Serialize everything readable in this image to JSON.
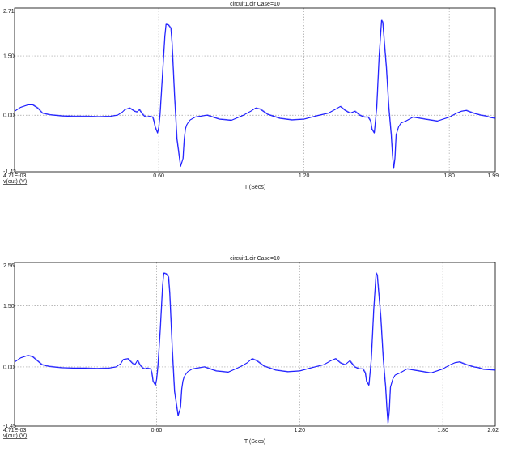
{
  "colors": {
    "trace": "#1a1aff",
    "grid": "#a0a0a0",
    "axis": "#000000"
  },
  "chart_data": [
    {
      "type": "line",
      "title": "circuit1.cir Case=10",
      "xlabel": "T (Secs)",
      "signal_label": "v(out) (V)",
      "xlim": [
        0.00471,
        1.99
      ],
      "ylim": [
        -1.43,
        2.71
      ],
      "x_ticks": [
        {
          "value": 0.00471,
          "label": "4.71E-03"
        },
        {
          "value": 0.6,
          "label": "0.60"
        },
        {
          "value": 1.2,
          "label": "1.20"
        },
        {
          "value": 1.8,
          "label": "1.80"
        },
        {
          "value": 1.99,
          "label": "1.99"
        }
      ],
      "y_ticks": [
        {
          "value": 2.71,
          "label": "2.71"
        },
        {
          "value": 1.5,
          "label": "1.50"
        },
        {
          "value": 0.0,
          "label": "0.00"
        },
        {
          "value": -1.43,
          "label": "-1.43"
        }
      ],
      "grid": true,
      "series": [
        {
          "x": [
            0.005,
            0.03,
            0.06,
            0.08,
            0.1,
            0.12,
            0.15,
            0.2,
            0.25,
            0.3,
            0.35,
            0.4,
            0.43,
            0.45,
            0.46,
            0.48,
            0.5,
            0.51,
            0.52,
            0.53,
            0.54,
            0.55,
            0.56,
            0.575,
            0.58,
            0.585,
            0.595,
            0.6,
            0.605,
            0.615,
            0.625,
            0.63,
            0.64,
            0.65,
            0.655,
            0.665,
            0.675,
            0.69,
            0.7,
            0.705,
            0.71,
            0.715,
            0.72,
            0.73,
            0.75,
            0.8,
            0.85,
            0.9,
            0.95,
            0.98,
            1.0,
            1.02,
            1.05,
            1.1,
            1.15,
            1.2,
            1.25,
            1.3,
            1.33,
            1.35,
            1.37,
            1.39,
            1.41,
            1.43,
            1.45,
            1.465,
            1.475,
            1.48,
            1.49,
            1.5,
            1.51,
            1.52,
            1.525,
            1.54,
            1.55,
            1.56,
            1.565,
            1.57,
            1.575,
            1.58,
            1.59,
            1.6,
            1.62,
            1.65,
            1.7,
            1.75,
            1.8,
            1.83,
            1.85,
            1.87,
            1.9,
            1.93,
            1.95,
            1.97,
            1.99
          ],
          "y": [
            0.1,
            0.2,
            0.26,
            0.26,
            0.18,
            0.05,
            0.01,
            -0.02,
            -0.03,
            -0.03,
            -0.04,
            -0.03,
            0.0,
            0.08,
            0.14,
            0.18,
            0.1,
            0.08,
            0.14,
            0.05,
            -0.02,
            -0.05,
            -0.03,
            -0.05,
            -0.15,
            -0.3,
            -0.45,
            -0.3,
            0.0,
            1.0,
            2.0,
            2.3,
            2.28,
            2.2,
            1.8,
            0.5,
            -0.6,
            -1.3,
            -1.1,
            -0.6,
            -0.35,
            -0.25,
            -0.2,
            -0.12,
            -0.05,
            0.0,
            -0.1,
            -0.13,
            0.0,
            0.1,
            0.18,
            0.15,
            0.02,
            -0.08,
            -0.12,
            -0.1,
            -0.02,
            0.05,
            0.15,
            0.22,
            0.12,
            0.05,
            0.1,
            0.0,
            -0.05,
            -0.05,
            -0.15,
            -0.35,
            -0.45,
            0.2,
            1.5,
            2.4,
            2.35,
            1.2,
            0.2,
            -0.5,
            -1.0,
            -1.35,
            -1.1,
            -0.5,
            -0.3,
            -0.2,
            -0.15,
            -0.05,
            -0.1,
            -0.15,
            -0.05,
            0.05,
            0.1,
            0.12,
            0.05,
            0.0,
            -0.02,
            -0.06,
            -0.08
          ]
        }
      ]
    },
    {
      "type": "line",
      "title": "circuit1.cir Case=10",
      "xlabel": "T (Secs)",
      "signal_label": "v(out) (V)",
      "xlim": [
        0.00471,
        2.02
      ],
      "ylim": [
        -1.45,
        2.56
      ],
      "x_ticks": [
        {
          "value": 0.00471,
          "label": "4.71E-03"
        },
        {
          "value": 0.6,
          "label": "0.60"
        },
        {
          "value": 1.2,
          "label": "1.20"
        },
        {
          "value": 1.8,
          "label": "1.80"
        },
        {
          "value": 2.02,
          "label": "2.02"
        }
      ],
      "y_ticks": [
        {
          "value": 2.56,
          "label": "2.56"
        },
        {
          "value": 1.5,
          "label": "1.50"
        },
        {
          "value": 0.0,
          "label": "0.00"
        },
        {
          "value": -1.45,
          "label": "-1.45"
        }
      ],
      "grid": true,
      "series": [
        {
          "x": [
            0.005,
            0.03,
            0.06,
            0.08,
            0.1,
            0.12,
            0.15,
            0.2,
            0.25,
            0.3,
            0.35,
            0.4,
            0.43,
            0.45,
            0.46,
            0.48,
            0.5,
            0.51,
            0.52,
            0.53,
            0.54,
            0.55,
            0.56,
            0.575,
            0.58,
            0.585,
            0.595,
            0.6,
            0.605,
            0.615,
            0.625,
            0.63,
            0.64,
            0.65,
            0.655,
            0.665,
            0.675,
            0.69,
            0.7,
            0.705,
            0.71,
            0.715,
            0.72,
            0.73,
            0.75,
            0.8,
            0.85,
            0.9,
            0.95,
            0.98,
            1.0,
            1.02,
            1.05,
            1.1,
            1.15,
            1.2,
            1.25,
            1.3,
            1.33,
            1.35,
            1.37,
            1.39,
            1.41,
            1.43,
            1.45,
            1.465,
            1.475,
            1.48,
            1.49,
            1.5,
            1.51,
            1.52,
            1.525,
            1.54,
            1.55,
            1.56,
            1.565,
            1.57,
            1.575,
            1.58,
            1.59,
            1.6,
            1.62,
            1.65,
            1.7,
            1.75,
            1.8,
            1.83,
            1.85,
            1.87,
            1.9,
            1.93,
            1.95,
            1.97,
            2.02
          ],
          "y": [
            0.12,
            0.22,
            0.28,
            0.25,
            0.15,
            0.05,
            0.01,
            -0.02,
            -0.03,
            -0.03,
            -0.04,
            -0.03,
            0.0,
            0.08,
            0.18,
            0.2,
            0.08,
            0.06,
            0.16,
            0.05,
            -0.02,
            -0.05,
            -0.03,
            -0.05,
            -0.15,
            -0.35,
            -0.45,
            -0.3,
            0.0,
            0.9,
            2.0,
            2.3,
            2.28,
            2.2,
            1.8,
            0.5,
            -0.6,
            -1.2,
            -1.0,
            -0.55,
            -0.35,
            -0.25,
            -0.2,
            -0.12,
            -0.05,
            0.0,
            -0.1,
            -0.13,
            0.0,
            0.1,
            0.2,
            0.15,
            0.02,
            -0.08,
            -0.12,
            -0.1,
            -0.02,
            0.05,
            0.15,
            0.2,
            0.1,
            0.05,
            0.15,
            0.0,
            -0.05,
            -0.05,
            -0.15,
            -0.35,
            -0.45,
            0.2,
            1.4,
            2.3,
            2.25,
            1.2,
            0.2,
            -0.5,
            -1.0,
            -1.38,
            -1.1,
            -0.5,
            -0.3,
            -0.2,
            -0.15,
            -0.05,
            -0.1,
            -0.15,
            -0.05,
            0.05,
            0.1,
            0.12,
            0.05,
            0.0,
            -0.02,
            -0.06,
            -0.08
          ]
        }
      ]
    }
  ]
}
